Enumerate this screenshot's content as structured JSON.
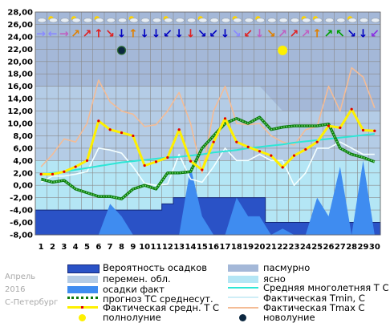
{
  "side_text": {
    "month": "Апрель",
    "year": "2016",
    "city": "С-Петербург"
  },
  "legend": {
    "precip_probability": "Вероятность осадков",
    "overcast": "пасмурно",
    "variable_clouds": "перемен. обл.",
    "clear": "ясно",
    "precip_actual": "осадки факт",
    "climate_mean": "Средняя многолетняя Т С",
    "forecast_mean": "прогноз ТС среднесут.",
    "actual_tmin": "Фактическая Tmin, C",
    "actual_mean": "Фактическая средн. Т С",
    "actual_tmax": "Фактическая Tmax С",
    "full_moon": "полнолуние",
    "new_moon": "новолуние"
  },
  "colors": {
    "sky": "#b4e6f5",
    "overcast": "#a4b8d8",
    "variable": "#b4cce6",
    "precip_prob": "#2a52c6",
    "precip_prob_edge": "#14287a",
    "precip_fact": "#3f8cf0",
    "climate": "#2ee6d6",
    "tmin": "#f4ffff",
    "tmax": "#f4bc96",
    "mean": "#fef000",
    "forecast": "#0b7a0b"
  },
  "chart_data": {
    "type": "line",
    "x": [
      1,
      2,
      3,
      4,
      5,
      6,
      7,
      8,
      9,
      10,
      11,
      12,
      13,
      14,
      15,
      16,
      17,
      18,
      19,
      20,
      21,
      22,
      23,
      24,
      25,
      26,
      27,
      28,
      29,
      30
    ],
    "xlabel": "",
    "ylabel": "",
    "ylim": [
      -8,
      28
    ],
    "y_ticks": [
      "-8,00",
      "-6,00",
      "-4,00",
      "-2,00",
      "0,00",
      "2,00",
      "4,00",
      "6,00",
      "8,00",
      "10,00",
      "12,00",
      "14,00",
      "16,00",
      "18,00",
      "20,00",
      "22,00",
      "24,00",
      "26,00",
      "28,00"
    ],
    "grid": true,
    "series": [
      {
        "name": "Средняя многолетняя Т С",
        "values": [
          1.8,
          2.0,
          2.2,
          2.5,
          2.8,
          3.1,
          3.4,
          3.7,
          3.9,
          4.1,
          4.3,
          4.5,
          4.6,
          4.8,
          5.0,
          5.3,
          5.5,
          5.7,
          6.0,
          6.2,
          6.4,
          6.6,
          6.9,
          7.1,
          7.3,
          7.5,
          7.7,
          7.9,
          8.1,
          8.3
        ]
      },
      {
        "name": "Фактическая Tmin, C",
        "values": [
          0.5,
          1.5,
          1.5,
          1.8,
          2.2,
          6.0,
          5.7,
          5.2,
          3.0,
          0.3,
          0.0,
          0.2,
          5.0,
          1.0,
          0.5,
          3.0,
          6.0,
          4.0,
          4.0,
          5.0,
          4.0,
          4.0,
          0.0,
          2.0,
          6.0,
          6.0,
          7.0,
          6.0,
          5.0,
          5.0
        ]
      },
      {
        "name": "Фактическая Tmax С",
        "values": [
          3.0,
          5.0,
          7.5,
          7.0,
          10.0,
          17.0,
          13.5,
          12.0,
          11.5,
          9.5,
          9.8,
          12.0,
          15.0,
          10.0,
          2.0,
          12.0,
          16.0,
          10.0,
          9.8,
          10.0,
          8.0,
          7.0,
          6.5,
          9.0,
          9.5,
          16.0,
          12.0,
          19.0,
          17.5,
          12.5
        ]
      },
      {
        "name": "Фактическая средн. Т С",
        "values": [
          1.8,
          1.8,
          2.2,
          3.0,
          4.0,
          10.4,
          9.0,
          8.5,
          8.0,
          3.2,
          3.8,
          4.5,
          9.0,
          3.9,
          2.5,
          7.0,
          10.8,
          7.0,
          6.2,
          5.5,
          4.8,
          2.9,
          4.8,
          5.8,
          7.0,
          9.6,
          9.3,
          12.3,
          8.9,
          8.8
        ]
      },
      {
        "name": "прогноз ТС среднесут.",
        "values": [
          1.0,
          0.5,
          0.8,
          -0.6,
          -1.2,
          -1.8,
          -1.8,
          -2.2,
          -0.6,
          0.0,
          -0.6,
          2.0,
          2.0,
          2.2,
          6.0,
          8.0,
          10.0,
          10.8,
          10.0,
          11.0,
          9.0,
          9.4,
          9.6,
          9.6,
          9.6,
          9.9,
          6.0,
          5.0,
          4.5,
          3.8
        ]
      },
      {
        "name": "Вероятность осадков",
        "values": [
          -4,
          -4,
          -4,
          -4,
          -4,
          -4,
          -4,
          -4,
          -4,
          -4,
          -4,
          -3,
          -2,
          -2,
          -2,
          -2,
          -2,
          -2,
          -2,
          -2,
          -6,
          -6,
          -6,
          -6,
          -6,
          -6,
          -6,
          -6,
          -6,
          -6
        ]
      },
      {
        "name": "осадки факт",
        "values": [
          -8,
          -8,
          -8,
          -8,
          -8,
          -8,
          -3,
          -5,
          -8,
          -8,
          -8,
          -8,
          -8,
          3,
          -5,
          -8,
          -8,
          -2,
          -5,
          -5,
          -8,
          -7,
          -8,
          -8,
          -2,
          -5,
          3,
          -8,
          4,
          -8
        ]
      }
    ],
    "cloud_bands": {
      "overcast_to": [
        28,
        28,
        28,
        28,
        28,
        28,
        28,
        28,
        28,
        28,
        28,
        28,
        28,
        28,
        28,
        28,
        28,
        28,
        28,
        28,
        28,
        28,
        28,
        28,
        28,
        28,
        28,
        28,
        28,
        28
      ],
      "overcast_from": [
        16,
        16,
        16,
        16,
        16,
        16,
        16,
        16,
        16,
        16,
        16,
        16,
        16,
        16,
        16,
        16,
        16,
        16,
        16,
        16,
        14,
        12,
        12,
        12,
        12,
        12,
        12,
        12,
        12,
        12
      ],
      "variable_from": [
        4,
        4,
        4,
        4,
        4,
        4,
        4,
        4,
        4,
        4,
        4,
        4,
        4,
        4,
        4,
        4,
        4,
        4,
        4,
        4,
        4,
        4,
        4,
        4,
        4,
        4,
        4,
        4,
        4,
        4
      ]
    },
    "full_moon_day": 22,
    "new_moon_day": 8,
    "moon_level": 21.8,
    "weather_icons": [
      "cloud",
      "sun-cloud",
      "cloud",
      "sun-cloud",
      "cloud",
      "sun-cloud",
      "cloud",
      "cloud",
      "sun-cloud",
      "cloud",
      "cloud",
      "sun-cloud",
      "cloud",
      "cloud",
      "sun-cloud",
      "cloud",
      "cloud",
      "sun-cloud",
      "cloud",
      "sun-cloud",
      "cloud",
      "cloud",
      "cloud",
      "sun-cloud",
      "sun-cloud",
      "cloud",
      "cloud",
      "sun-cloud",
      "cloud",
      "cloud"
    ],
    "wind_arrows": [
      "→",
      "←",
      "→",
      "↗",
      "↗",
      "↑",
      "↘",
      "↓",
      "↑",
      "↓",
      "↓",
      "↙",
      "↓",
      "↓",
      "↘",
      "↙",
      "↓",
      "↘",
      "↙",
      "↓",
      "↘",
      "↗",
      "↗",
      "↗",
      "↑",
      "↗",
      "↖",
      "↘",
      "↓",
      "↙"
    ],
    "wind_arrow_colors": [
      "#8a8aff",
      "#8a8aff",
      "#c060c0",
      "#e08000",
      "#e02020",
      "#e02020",
      "#e02020",
      "#0000c0",
      "#e08000",
      "#0000c0",
      "#0000c0",
      "#0000c0",
      "#0000c0",
      "#e02020",
      "#0000c0",
      "#0000c0",
      "#0000c0",
      "#8a8aff",
      "#e02020",
      "#c060c0",
      "#e08000",
      "#c060c0",
      "#e02020",
      "#c060c0",
      "#e08000",
      "#00a000",
      "#00a000",
      "#0000c0",
      "#0000c0",
      "#8a2be2"
    ]
  }
}
